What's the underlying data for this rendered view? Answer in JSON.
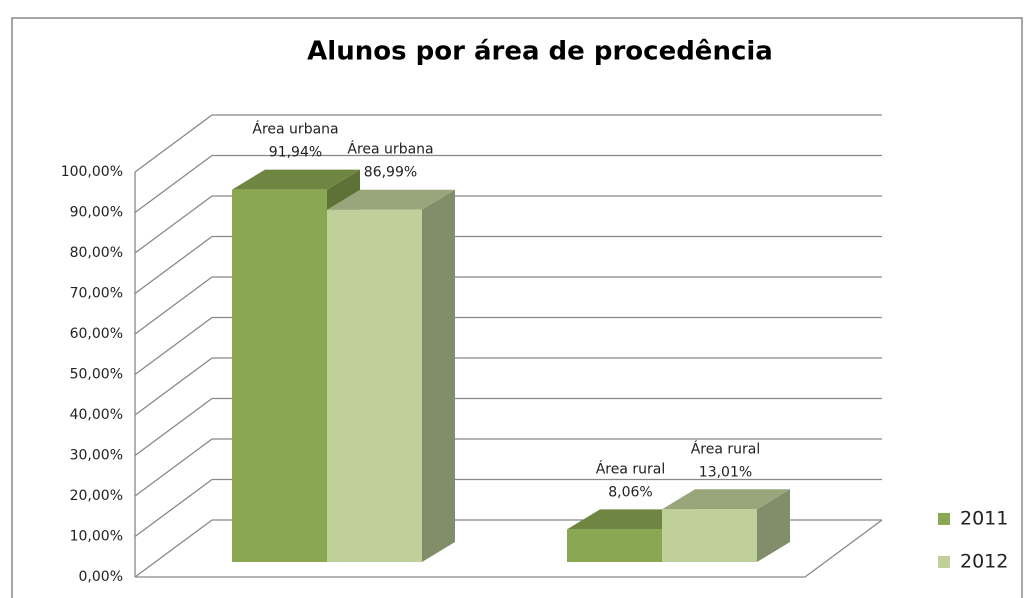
{
  "chart_data": {
    "type": "bar3d",
    "title": "Alunos por área de procedência",
    "categories": [
      "Área urbana",
      "Área rural"
    ],
    "series": [
      {
        "name": "2011",
        "color": "#8aa852",
        "values": [
          91.94,
          8.06
        ],
        "value_labels": [
          "91,94%",
          "8,06%"
        ]
      },
      {
        "name": "2012",
        "color": "#bfd09a",
        "values": [
          86.99,
          13.01
        ],
        "value_labels": [
          "86,99%",
          "13,01%"
        ]
      }
    ],
    "ylim": [
      0,
      100
    ],
    "yticks": [
      {
        "value": 0,
        "label": "0,00%"
      },
      {
        "value": 10,
        "label": "10,00%"
      },
      {
        "value": 20,
        "label": "20,00%"
      },
      {
        "value": 30,
        "label": "30,00%"
      },
      {
        "value": 40,
        "label": "40,00%"
      },
      {
        "value": 50,
        "label": "50,00%"
      },
      {
        "value": 60,
        "label": "60,00%"
      },
      {
        "value": 70,
        "label": "70,00%"
      },
      {
        "value": 80,
        "label": "80,00%"
      },
      {
        "value": 90,
        "label": "90,00%"
      },
      {
        "value": 100,
        "label": "100,00%"
      }
    ],
    "grid": true,
    "legend": "right"
  }
}
